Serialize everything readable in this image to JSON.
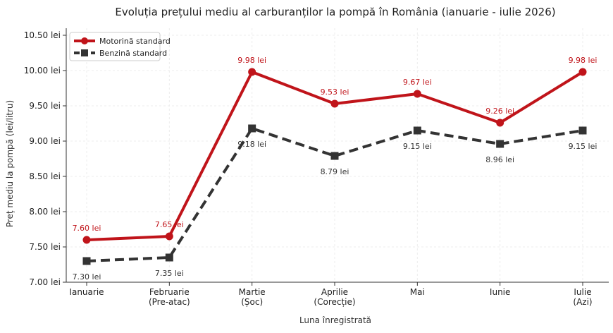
{
  "chart_data": {
    "type": "line",
    "title": "Evoluția prețului mediu al carburanților la pompă în România (ianuarie - iulie 2026)",
    "xlabel": "Luna înregistrată",
    "ylabel": "Preț mediu la pompă (lei/litru)",
    "categories": [
      [
        "Ianuarie"
      ],
      [
        "Februarie",
        "(Pre-atac)"
      ],
      [
        "Martie",
        "(Șoc)"
      ],
      [
        "Aprilie",
        "(Corecție)"
      ],
      [
        "Mai"
      ],
      [
        "Iunie"
      ],
      [
        "Iulie",
        "(Azi)"
      ]
    ],
    "ylim": [
      7.0,
      10.6
    ],
    "yticks": [
      7.0,
      7.5,
      8.0,
      8.5,
      9.0,
      9.5,
      10.0,
      10.5
    ],
    "ytick_labels": [
      "7.00 lei",
      "7.50 lei",
      "8.00 lei",
      "8.50 lei",
      "9.00 lei",
      "9.50 lei",
      "10.00 lei",
      "10.50 lei"
    ],
    "grid": true,
    "legend_position": "top-left",
    "series": [
      {
        "name": "Motorină standard",
        "color": "#c0141a",
        "style": "solid",
        "marker": "circle",
        "values": [
          7.6,
          7.65,
          9.98,
          9.53,
          9.67,
          9.26,
          9.98
        ],
        "labels": [
          "7.60 lei",
          "7.65 lei",
          "9.98 lei",
          "9.53 lei",
          "9.67 lei",
          "9.26 lei",
          "9.98 lei"
        ],
        "label_position": "above"
      },
      {
        "name": "Benzină standard",
        "color": "#333333",
        "style": "dashed",
        "marker": "square",
        "values": [
          7.3,
          7.35,
          9.18,
          8.79,
          9.15,
          8.96,
          9.15
        ],
        "labels": [
          "7.30 lei",
          "7.35 lei",
          "9.18 lei",
          "8.79 lei",
          "9.15 lei",
          "8.96 lei",
          "9.15 lei"
        ],
        "label_position": "below"
      }
    ]
  }
}
